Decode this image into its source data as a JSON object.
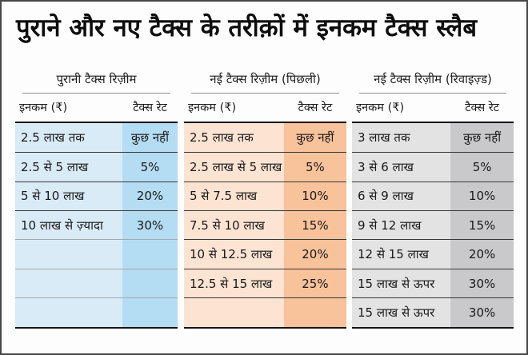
{
  "chart_data": {
    "type": "table",
    "title": "पुराने और नए टैक्स के तरीक़ों में इनकम टैक्स स्लैब",
    "column_headers": {
      "income": "इनकम (₹)",
      "rate": "टैक्स रेट"
    },
    "tables": [
      {
        "name": "पुरानी टैक्स रिज़ीम",
        "colors": {
          "light": "#d9ebf7",
          "dark": "#b4dcf2"
        },
        "rows": [
          {
            "income": "2.5 लाख तक",
            "rate": "कुछ नहीं"
          },
          {
            "income": "2.5 से 5 लाख",
            "rate": "5%"
          },
          {
            "income": "5 से 10 लाख",
            "rate": "20%"
          },
          {
            "income": "10 लाख से ज़्यादा",
            "rate": "30%"
          },
          {
            "income": "",
            "rate": ""
          },
          {
            "income": "",
            "rate": ""
          },
          {
            "income": "",
            "rate": ""
          }
        ]
      },
      {
        "name": "नई टैक्स रिज़ीम (पिछली)",
        "colors": {
          "light": "#fce3d2",
          "dark": "#f8c29b"
        },
        "rows": [
          {
            "income": "2.5 लाख तक",
            "rate": "कुछ नहीं"
          },
          {
            "income": "2.5 लाख से 5 लाख",
            "rate": "5%"
          },
          {
            "income": "5 से 7.5 लाख",
            "rate": "10%"
          },
          {
            "income": "7.5 से 10 लाख",
            "rate": "15%"
          },
          {
            "income": "10 से 12.5 लाख",
            "rate": "20%"
          },
          {
            "income": "12.5 से 15 लाख",
            "rate": "25%"
          },
          {
            "income": "",
            "rate": ""
          }
        ]
      },
      {
        "name": "नई टैक्स रिज़ीम (रिवाइज़्ड)",
        "colors": {
          "light": "#e3e3e4",
          "dark": "#c9c9cb"
        },
        "rows": [
          {
            "income": "3 लाख तक",
            "rate": "कुछ नहीं"
          },
          {
            "income": "3 से 6 लाख",
            "rate": "5%"
          },
          {
            "income": "6 से 9 लाख",
            "rate": "10%"
          },
          {
            "income": "9 से 12 लाख",
            "rate": "15%"
          },
          {
            "income": "12 से 15 लाख",
            "rate": "20%"
          },
          {
            "income": "15 लाख से ऊपर",
            "rate": "30%"
          },
          {
            "income": "15 लाख से ऊपर",
            "rate": "30%"
          }
        ]
      }
    ]
  }
}
